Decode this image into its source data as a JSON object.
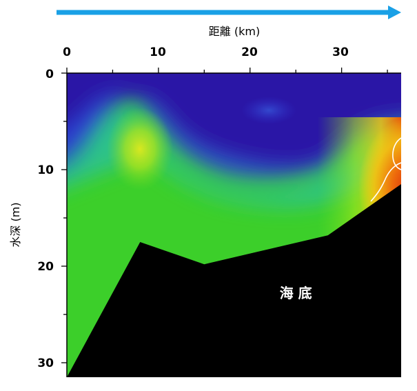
{
  "chart_data": {
    "type": "heatmap",
    "xlabel": "距離 (km)",
    "ylabel": "水深 (m)",
    "x_ticks": [
      "0",
      "10",
      "20",
      "30"
    ],
    "y_ticks": [
      "0",
      "10",
      "20",
      "30"
    ],
    "xlim": [
      0,
      36.5
    ],
    "ylim": [
      0,
      31.5
    ],
    "y_inverted": true,
    "x_axis_position": "top",
    "direction_arrow": "left-to-right",
    "colors": {
      "arrow": "#1aa0e6",
      "low": "#2b10a8",
      "mid_low": "#1a9cf0",
      "mid": "#33d04a",
      "mid_high": "#e8e815",
      "high": "#d52a08",
      "seabed": "#000000",
      "contour": "#ffffff"
    },
    "seabed_profile": {
      "x": [
        0,
        8,
        15,
        28.5,
        36.5
      ],
      "depth": [
        31.5,
        17.5,
        19.8,
        16.8,
        11.5
      ]
    },
    "annotations": [
      {
        "text": "海 底",
        "x": 25,
        "depth": 22.8
      }
    ]
  }
}
